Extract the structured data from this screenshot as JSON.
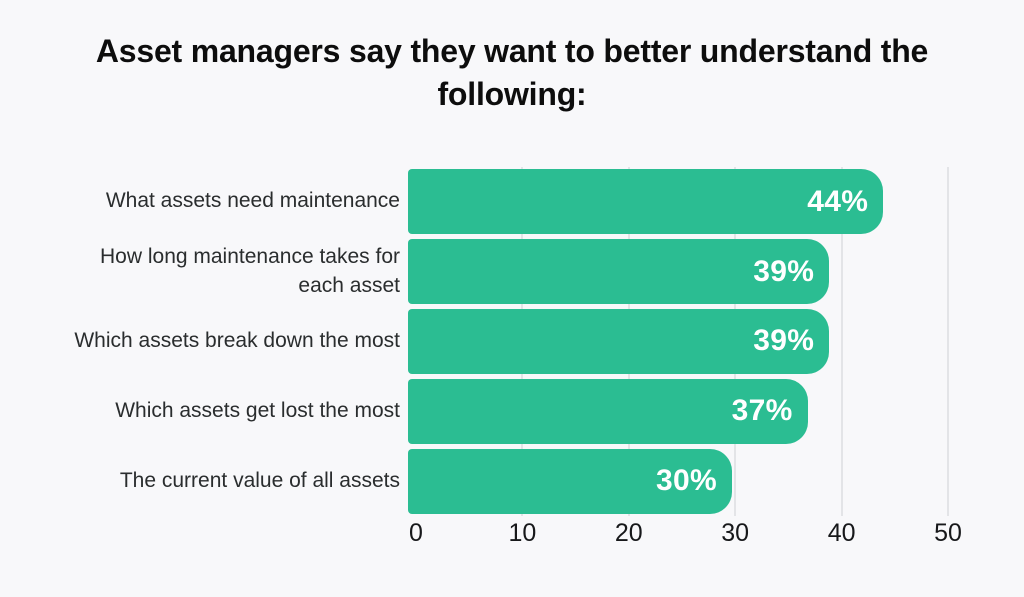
{
  "page": {
    "background": "#f8f8fa"
  },
  "chart_data": {
    "type": "bar",
    "orientation": "horizontal",
    "title": "Asset managers say they want to better understand the following:",
    "categories": [
      "What assets need maintenance",
      "How long maintenance takes for each asset",
      "Which assets break down the most",
      "Which assets get lost the most",
      "The current value of all assets"
    ],
    "values": [
      44,
      39,
      39,
      37,
      30
    ],
    "value_labels": [
      "44%",
      "39%",
      "39%",
      "37%",
      "30%"
    ],
    "xlabel": "",
    "ylabel": "",
    "xlim": [
      0,
      50
    ],
    "xticks": [
      0,
      10,
      20,
      30,
      40,
      50
    ],
    "grid": true,
    "legend_position": "none",
    "colors": {
      "bar": "#2bbd92",
      "background": "#f8f8fa",
      "gridline": "#e3e4e7",
      "title_text": "#0d0d0d",
      "category_text": "#2a2d2e",
      "axis_text": "#17181a",
      "value_text": "#ffffff"
    }
  }
}
